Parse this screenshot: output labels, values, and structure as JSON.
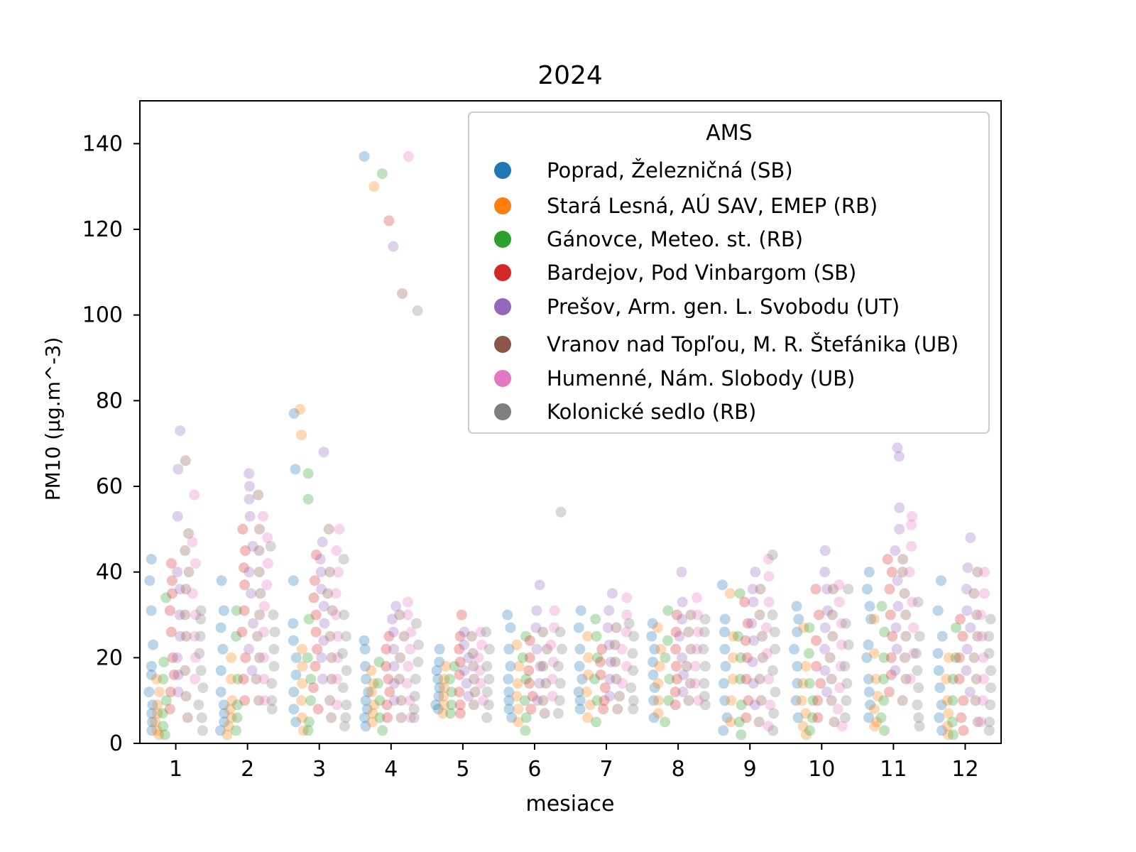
{
  "chart_data": {
    "type": "scatter",
    "subtype": "strip-plot",
    "title": "2024",
    "xlabel": "mesiace",
    "ylabel": "PM10 (μg.m^-3)",
    "ylabel_main": "PM",
    "ylabel_sub": "10",
    "ylabel_units": "(μg.m",
    "ylabel_exp": "−3",
    "ylabel_close": ")",
    "xlim": [
      0.5,
      12.5
    ],
    "ylim": [
      0,
      150
    ],
    "categories": [
      "1",
      "2",
      "3",
      "4",
      "5",
      "6",
      "7",
      "8",
      "9",
      "10",
      "11",
      "12"
    ],
    "yticks": [
      0,
      20,
      40,
      60,
      80,
      100,
      120,
      140
    ],
    "grid": false,
    "legend": {
      "title": "AMS",
      "placement": "top-right"
    },
    "series": [
      {
        "name": "Poprad, Železničná (SB)",
        "color": "#1f77b4",
        "values": [
          [
            43,
            38,
            31,
            23,
            18,
            16,
            12,
            9,
            7,
            5,
            3
          ],
          [
            38,
            31,
            27,
            22,
            17,
            12,
            9,
            7,
            5,
            3
          ],
          [
            77,
            64,
            38,
            28,
            24,
            20,
            16,
            12,
            8,
            5
          ],
          [
            137,
            24,
            22,
            18,
            15,
            12,
            10,
            8,
            6,
            4
          ],
          [
            22,
            19,
            17,
            15,
            13,
            11,
            9,
            8
          ],
          [
            30,
            27,
            22,
            18,
            15,
            12,
            10,
            8,
            6
          ],
          [
            31,
            27,
            22,
            18,
            15,
            12,
            10,
            8
          ],
          [
            28,
            25,
            22,
            19,
            16,
            13,
            10,
            6
          ],
          [
            37,
            29,
            26,
            22,
            18,
            14,
            10,
            6,
            3
          ],
          [
            32,
            29,
            26,
            22,
            18,
            14,
            10,
            6
          ],
          [
            40,
            36,
            32,
            29,
            23,
            20,
            15,
            12,
            9,
            6
          ],
          [
            38,
            31,
            25,
            21,
            17,
            13,
            9,
            6,
            3
          ]
        ]
      },
      {
        "name": "Stará Lesná, AÚ SAV, EMEP (RB)",
        "color": "#ff7f0e",
        "values": [
          [
            15,
            12,
            9,
            7,
            5,
            3,
            2
          ],
          [
            20,
            15,
            10,
            8,
            6,
            4,
            2
          ],
          [
            78,
            72,
            22,
            18,
            14,
            10,
            6,
            3
          ],
          [
            130,
            17,
            14,
            12,
            9,
            7,
            5
          ],
          [
            18,
            15,
            13,
            11,
            9,
            7
          ],
          [
            23,
            18,
            14,
            11,
            8,
            5
          ],
          [
            25,
            20,
            16,
            12,
            9,
            6
          ],
          [
            27,
            22,
            18,
            14,
            10,
            7
          ],
          [
            35,
            25,
            20,
            15,
            10,
            5
          ],
          [
            27,
            18,
            14,
            10,
            7,
            4,
            2
          ],
          [
            29,
            21,
            15,
            11,
            8,
            5,
            4
          ],
          [
            20,
            15,
            10,
            7,
            4,
            2
          ]
        ]
      },
      {
        "name": "Gánovce, Meteo. st. (RB)",
        "color": "#2ca02c",
        "values": [
          [
            34,
            19,
            15,
            10,
            7,
            4,
            2
          ],
          [
            31,
            25,
            15,
            9,
            6,
            3
          ],
          [
            63,
            57,
            29,
            20,
            15,
            10,
            5,
            3
          ],
          [
            133,
            19,
            14,
            10,
            6,
            3
          ],
          [
            18,
            15,
            12,
            9,
            7
          ],
          [
            25,
            20,
            15,
            10,
            6,
            3
          ],
          [
            29,
            25,
            20,
            15,
            10,
            5
          ],
          [
            31,
            24,
            20,
            15,
            10,
            5
          ],
          [
            35,
            25,
            20,
            15,
            9,
            5,
            2
          ],
          [
            27,
            21,
            14,
            10,
            6,
            3
          ],
          [
            32,
            26,
            20,
            15,
            10,
            6,
            3
          ],
          [
            27,
            20,
            15,
            10,
            5,
            2
          ]
        ]
      },
      {
        "name": "Bardejov, Pod Vinbargom (SB)",
        "color": "#d62728",
        "values": [
          [
            42,
            38,
            35,
            31,
            26,
            20,
            16,
            12,
            8
          ],
          [
            50,
            45,
            41,
            37,
            31,
            26,
            20,
            15,
            10
          ],
          [
            44,
            38,
            34,
            30,
            26,
            22,
            18,
            13,
            8
          ],
          [
            122,
            25,
            22,
            18,
            15,
            12,
            9,
            6
          ],
          [
            30,
            25,
            22,
            19,
            16,
            12,
            9,
            7
          ],
          [
            24,
            20,
            17,
            14,
            11,
            8
          ],
          [
            22,
            19,
            16,
            13,
            10,
            8
          ],
          [
            30,
            26,
            22,
            18,
            15,
            12,
            9
          ],
          [
            33,
            28,
            24,
            20,
            15,
            10,
            6
          ],
          [
            36,
            30,
            24,
            18,
            14,
            10,
            6
          ],
          [
            43,
            40,
            36,
            30,
            25,
            20,
            16,
            12
          ],
          [
            29,
            25,
            20,
            15,
            10,
            6,
            3
          ]
        ]
      },
      {
        "name": "Prešov, Arm. gen. L. Svobodu (UT)",
        "color": "#9467bd",
        "values": [
          [
            73,
            64,
            53,
            40,
            36,
            30,
            25,
            20,
            16,
            12
          ],
          [
            63,
            60,
            57,
            53,
            46,
            40,
            35,
            28,
            22,
            17
          ],
          [
            68,
            47,
            43,
            40,
            36,
            32,
            28,
            24,
            20,
            15
          ],
          [
            116,
            32,
            29,
            26,
            22,
            18,
            14,
            10
          ],
          [
            26,
            23,
            20,
            17,
            14,
            11
          ],
          [
            37,
            31,
            27,
            22,
            18,
            14,
            10
          ],
          [
            35,
            31,
            27,
            23,
            19,
            15,
            11
          ],
          [
            40,
            33,
            29,
            25,
            20,
            16,
            12
          ],
          [
            40,
            36,
            33,
            28,
            24,
            19,
            14,
            9
          ],
          [
            45,
            40,
            36,
            31,
            27,
            22,
            17,
            12
          ],
          [
            69,
            67,
            55,
            50,
            45,
            38,
            32,
            27,
            22,
            17
          ],
          [
            48,
            41,
            36,
            31,
            27,
            22,
            17,
            12
          ]
        ]
      },
      {
        "name": "Vranov nad Topľou, M. R. Štefánika (UB)",
        "color": "#8c564b",
        "values": [
          [
            66,
            49,
            45,
            40,
            36,
            30,
            25,
            17,
            11,
            6
          ],
          [
            58,
            50,
            45,
            40,
            35,
            30,
            25,
            20,
            15,
            10
          ],
          [
            50,
            40,
            35,
            31,
            25,
            20,
            15,
            10,
            6
          ],
          [
            105,
            30,
            25,
            20,
            15,
            10,
            6
          ],
          [
            25,
            21,
            18,
            15,
            12,
            9
          ],
          [
            26,
            22,
            18,
            14,
            10,
            7
          ],
          [
            27,
            23,
            19,
            15,
            11,
            8
          ],
          [
            30,
            26,
            22,
            18,
            14,
            10
          ],
          [
            36,
            30,
            25,
            20,
            15,
            10,
            5
          ],
          [
            36,
            30,
            25,
            20,
            15,
            10,
            5
          ],
          [
            43,
            40,
            35,
            30,
            25,
            20,
            15,
            10
          ],
          [
            40,
            35,
            30,
            25,
            20,
            15,
            10,
            5
          ]
        ]
      },
      {
        "name": "Humenné, Nám. Slobody (UB)",
        "color": "#e377c2",
        "values": [
          [
            58,
            47,
            42,
            35,
            30,
            25,
            20,
            15
          ],
          [
            53,
            48,
            42,
            37,
            32,
            26,
            20,
            15,
            10
          ],
          [
            50,
            45,
            40,
            35,
            30,
            25,
            20,
            15,
            9
          ],
          [
            137,
            33,
            30,
            26,
            22,
            18,
            14,
            10,
            6
          ],
          [
            26,
            23,
            20,
            17,
            14,
            10
          ],
          [
            31,
            27,
            23,
            19,
            15,
            11
          ],
          [
            34,
            30,
            26,
            22,
            18,
            14
          ],
          [
            34,
            30,
            26,
            22,
            18,
            14,
            10
          ],
          [
            43,
            39,
            33,
            27,
            21,
            15,
            9,
            4
          ],
          [
            37,
            33,
            28,
            23,
            18,
            13,
            8,
            4
          ],
          [
            53,
            51,
            46,
            40,
            33,
            27,
            21,
            15
          ],
          [
            40,
            35,
            30,
            25,
            20,
            15,
            10,
            5
          ]
        ]
      },
      {
        "name": "Kolonické sedlo (RB)",
        "color": "#7f7f7f",
        "values": [
          [
            31,
            29,
            25,
            21,
            17,
            13,
            9,
            6,
            3
          ],
          [
            46,
            30,
            26,
            22,
            18,
            14,
            10,
            8
          ],
          [
            43,
            30,
            25,
            21,
            17,
            13,
            9,
            6,
            4
          ],
          [
            101,
            28,
            23,
            19,
            15,
            11,
            8,
            6
          ],
          [
            26,
            22,
            18,
            15,
            12,
            9,
            6
          ],
          [
            54,
            26,
            22,
            18,
            14,
            10,
            7
          ],
          [
            28,
            25,
            21,
            17,
            13,
            10,
            8
          ],
          [
            29,
            26,
            22,
            18,
            14,
            11,
            9
          ],
          [
            44,
            30,
            26,
            22,
            17,
            12,
            7,
            3
          ],
          [
            36,
            28,
            23,
            18,
            14,
            10,
            6
          ],
          [
            33,
            25,
            21,
            17,
            13,
            9,
            6,
            4
          ],
          [
            29,
            25,
            21,
            17,
            13,
            9,
            5,
            3
          ]
        ]
      }
    ]
  }
}
